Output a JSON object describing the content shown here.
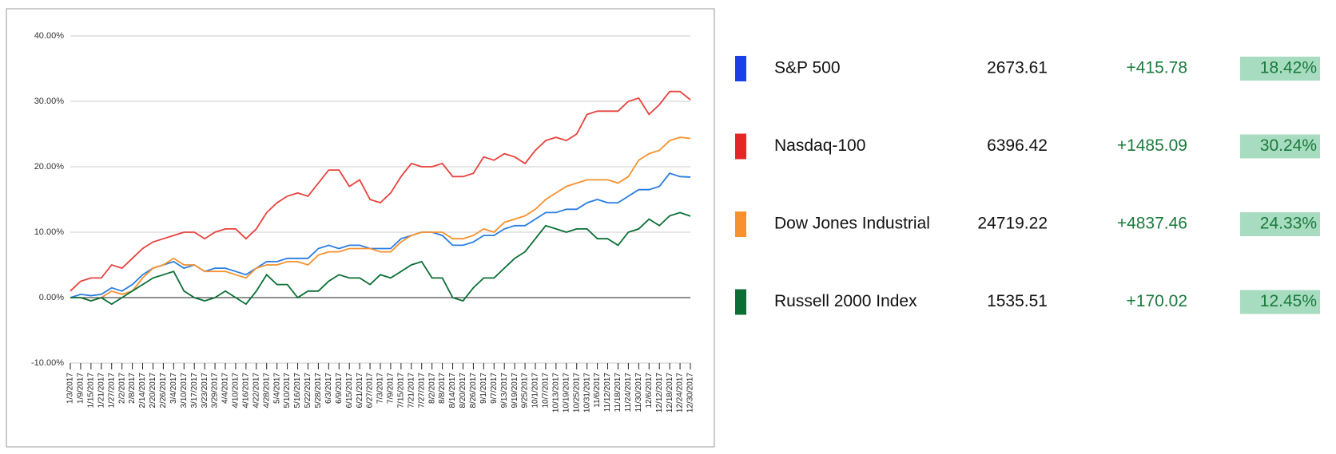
{
  "chart_data": {
    "type": "line",
    "categories": [
      "1/3/2017",
      "1/9/2017",
      "1/15/2017",
      "1/21/2017",
      "1/27/2017",
      "2/2/2017",
      "2/8/2017",
      "2/14/2017",
      "2/20/2017",
      "2/26/2017",
      "3/4/2017",
      "3/10/2017",
      "3/17/2017",
      "3/23/2017",
      "3/29/2017",
      "4/4/2017",
      "4/10/2017",
      "4/16/2017",
      "4/22/2017",
      "4/28/2017",
      "5/4/2017",
      "5/10/2017",
      "5/16/2017",
      "5/22/2017",
      "5/28/2017",
      "6/3/2017",
      "6/9/2017",
      "6/15/2017",
      "6/21/2017",
      "6/27/2017",
      "7/3/2017",
      "7/9/2017",
      "7/15/2017",
      "7/21/2017",
      "7/27/2017",
      "8/2/2017",
      "8/8/2017",
      "8/14/2017",
      "8/20/2017",
      "8/26/2017",
      "9/1/2017",
      "9/7/2017",
      "9/13/2017",
      "9/19/2017",
      "9/25/2017",
      "10/1/2017",
      "10/7/2017",
      "10/13/2017",
      "10/19/2017",
      "10/25/2017",
      "10/31/2017",
      "11/6/2017",
      "11/12/2017",
      "11/18/2017",
      "11/24/2017",
      "11/30/2017",
      "12/6/2017",
      "12/12/2017",
      "12/18/2017",
      "12/24/2017",
      "12/30/2017"
    ],
    "series": [
      {
        "name": "S&P 500",
        "color": "#2a7de1",
        "values": [
          0,
          0.5,
          0.3,
          0.5,
          1.5,
          1,
          2,
          3.5,
          4.5,
          5,
          5.5,
          4.5,
          5,
          4,
          4.5,
          4.5,
          4,
          3.5,
          4.5,
          5.5,
          5.5,
          6,
          6,
          6,
          7.5,
          8,
          7.5,
          8,
          8,
          7.5,
          7.5,
          7.5,
          9,
          9.5,
          10,
          10,
          9.5,
          8,
          8,
          8.5,
          9.5,
          9.5,
          10.5,
          11,
          11,
          12,
          13,
          13,
          13.5,
          13.5,
          14.5,
          15,
          14.5,
          14.5,
          15.5,
          16.5,
          16.5,
          17,
          19,
          18.5,
          18.42
        ]
      },
      {
        "name": "Nasdaq-100",
        "color": "#e8413c",
        "values": [
          1,
          2.5,
          3,
          3,
          5,
          4.5,
          6,
          7.5,
          8.5,
          9,
          9.5,
          10,
          10,
          9,
          10,
          10.5,
          10.5,
          9,
          10.5,
          13,
          14.5,
          15.5,
          16,
          15.5,
          17.5,
          19.5,
          19.5,
          17,
          18,
          15,
          14.5,
          16,
          18.5,
          20.5,
          20,
          20,
          20.5,
          18.5,
          18.5,
          19,
          21.5,
          21,
          22,
          21.5,
          20.5,
          22.5,
          24,
          24.5,
          24,
          25,
          28,
          28.5,
          28.5,
          28.5,
          30,
          30.5,
          28,
          29.5,
          31.5,
          31.5,
          30.24
        ]
      },
      {
        "name": "Dow Jones Industrial",
        "color": "#f7912d",
        "values": [
          0,
          0,
          -0.5,
          0,
          1,
          0.5,
          1,
          3,
          4.5,
          5,
          6,
          5,
          5,
          4,
          4,
          4,
          3.5,
          3,
          4.5,
          5,
          5,
          5.5,
          5.5,
          5,
          6.5,
          7,
          7,
          7.5,
          7.5,
          7.5,
          7,
          7,
          8.5,
          9.5,
          10,
          10,
          10,
          9,
          9,
          9.5,
          10.5,
          10,
          11.5,
          12,
          12.5,
          13.5,
          15,
          16,
          17,
          17.5,
          18,
          18,
          18,
          17.5,
          18.5,
          21,
          22,
          22.5,
          24,
          24.5,
          24.33
        ]
      },
      {
        "name": "Russell 2000 Index",
        "color": "#0a6e35",
        "values": [
          0,
          0,
          -0.5,
          0,
          -1,
          0,
          1,
          2,
          3,
          3.5,
          4,
          1,
          0,
          -0.5,
          0,
          1,
          0,
          -1,
          1,
          3.5,
          2,
          2,
          0,
          1,
          1,
          2.5,
          3.5,
          3,
          3,
          2,
          3.5,
          3,
          4,
          5,
          5.5,
          3,
          3,
          0,
          -0.5,
          1.5,
          3,
          3,
          4.5,
          6,
          7,
          9,
          11,
          10.5,
          10,
          10.5,
          10.5,
          9,
          9,
          8,
          10,
          10.5,
          12,
          11,
          12.5,
          13,
          12.45
        ]
      }
    ],
    "ylim": [
      -10,
      40
    ],
    "yticks": [
      {
        "value": -10,
        "label": "-10.00%"
      },
      {
        "value": 0,
        "label": "0.00%"
      },
      {
        "value": 10,
        "label": "10.00%"
      },
      {
        "value": 20,
        "label": "20.00%"
      },
      {
        "value": 30,
        "label": "30.00%"
      },
      {
        "value": 40,
        "label": "40.00%"
      }
    ],
    "grid": true
  },
  "table": {
    "rows": [
      {
        "name": "S&P 500",
        "color": "#1a3fe8",
        "price": "2673.61",
        "change": "+415.78",
        "percent": "18.42%"
      },
      {
        "name": "Nasdaq-100",
        "color": "#e52626",
        "price": "6396.42",
        "change": "+1485.09",
        "percent": "30.24%"
      },
      {
        "name": "Dow Jones Industrial",
        "color": "#f7912d",
        "price": "24719.22",
        "change": "+4837.46",
        "percent": "24.33%"
      },
      {
        "name": "Russell 2000 Index",
        "color": "#0a6e35",
        "price": "1535.51",
        "change": "+170.02",
        "percent": "12.45%"
      }
    ]
  }
}
